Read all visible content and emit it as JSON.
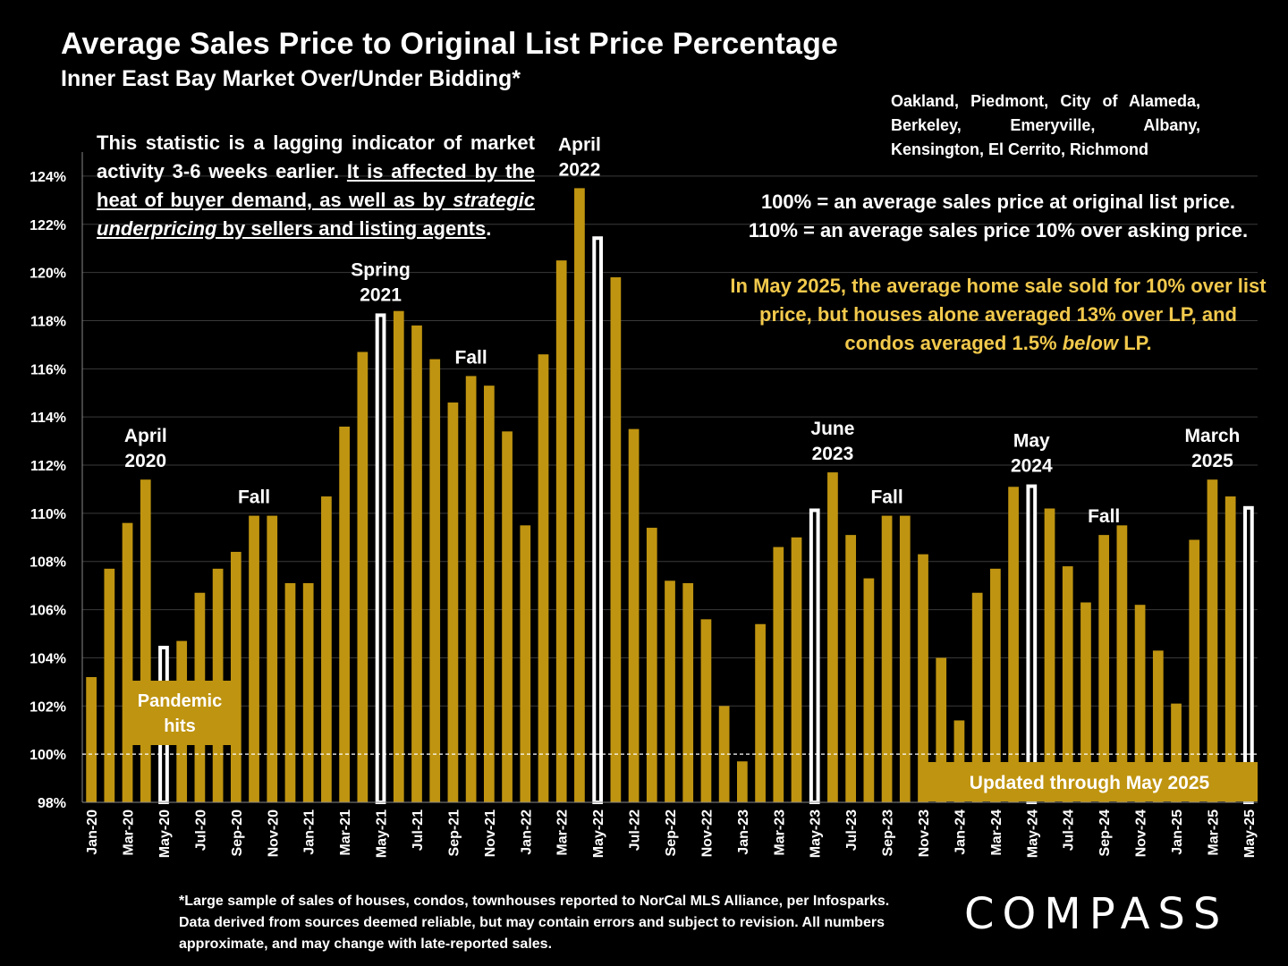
{
  "colors": {
    "bar": "#bf9410",
    "highlight_fill": "#000000",
    "highlight_stroke": "#ffffff",
    "grid": "#3a3a3a",
    "callout_box": "#bf9410",
    "may_text": "#f2c94c"
  },
  "chart_data": {
    "type": "bar",
    "title": "Average Sales Price to Original List Price Percentage",
    "subtitle": "Inner East Bay Market Over/Under Bidding*",
    "ylim": [
      98,
      125
    ],
    "yticks": [
      "98%",
      "100%",
      "102%",
      "104%",
      "106%",
      "108%",
      "110%",
      "112%",
      "114%",
      "116%",
      "118%",
      "120%",
      "122%",
      "124%"
    ],
    "ytick_values": [
      98,
      100,
      102,
      104,
      106,
      108,
      110,
      112,
      114,
      116,
      118,
      120,
      122,
      124
    ],
    "reference_line": 100,
    "grid": true,
    "categories": [
      "Jan-20",
      "Feb-20",
      "Mar-20",
      "Apr-20",
      "May-20",
      "Jun-20",
      "Jul-20",
      "Aug-20",
      "Sep-20",
      "Oct-20",
      "Nov-20",
      "Dec-20",
      "Jan-21",
      "Feb-21",
      "Mar-21",
      "Apr-21",
      "May-21",
      "Jun-21",
      "Jul-21",
      "Aug-21",
      "Sep-21",
      "Oct-21",
      "Nov-21",
      "Dec-21",
      "Jan-22",
      "Feb-22",
      "Mar-22",
      "Apr-22",
      "May-22",
      "Jun-22",
      "Jul-22",
      "Aug-22",
      "Sep-22",
      "Oct-22",
      "Nov-22",
      "Dec-22",
      "Jan-23",
      "Feb-23",
      "Mar-23",
      "Apr-23",
      "May-23",
      "Jun-23",
      "Jul-23",
      "Aug-23",
      "Sep-23",
      "Oct-23",
      "Nov-23",
      "Dec-23",
      "Jan-24",
      "Feb-24",
      "Mar-24",
      "Apr-24",
      "May-24",
      "Jun-24",
      "Jul-24",
      "Aug-24",
      "Sep-24",
      "Oct-24",
      "Nov-24",
      "Dec-24",
      "Jan-25",
      "Feb-25",
      "Mar-25",
      "Apr-25",
      "May-25"
    ],
    "xtick_labels": [
      "Jan-20",
      "Mar-20",
      "May-20",
      "Jul-20",
      "Sep-20",
      "Nov-20",
      "Jan-21",
      "Mar-21",
      "May-21",
      "Jul-21",
      "Sep-21",
      "Nov-21",
      "Jan-22",
      "Mar-22",
      "May-22",
      "Jul-22",
      "Sep-22",
      "Nov-22",
      "Jan-23",
      "Mar-23",
      "May-23",
      "Jul-23",
      "Sep-23",
      "Nov-23",
      "Jan-24",
      "Mar-24",
      "May-24",
      "Jul-24",
      "Sep-24",
      "Nov-24",
      "Jan-25",
      "Mar-25",
      "May-25"
    ],
    "values": [
      103.2,
      107.7,
      109.6,
      111.4,
      104.5,
      104.7,
      106.7,
      107.7,
      108.4,
      109.9,
      109.9,
      107.1,
      107.1,
      110.7,
      113.6,
      116.7,
      118.3,
      118.4,
      117.8,
      116.4,
      114.6,
      115.7,
      115.3,
      113.4,
      109.5,
      116.6,
      120.5,
      123.5,
      121.5,
      119.8,
      113.5,
      109.4,
      107.2,
      107.1,
      105.6,
      102.0,
      99.7,
      105.4,
      108.6,
      109.0,
      110.2,
      111.7,
      109.1,
      107.3,
      109.9,
      109.9,
      108.3,
      104.0,
      101.4,
      106.7,
      107.7,
      111.1,
      111.2,
      110.2,
      107.8,
      106.3,
      109.1,
      109.5,
      106.2,
      104.3,
      102.1,
      108.9,
      111.4,
      110.7,
      110.3
    ],
    "highlighted": [
      "May-20",
      "May-21",
      "May-22",
      "May-23",
      "May-24",
      "May-25"
    ]
  },
  "annotations": [
    {
      "id": "april-2020",
      "lines": [
        "April",
        "2020"
      ],
      "at": "Apr-20"
    },
    {
      "id": "fall-2020",
      "lines": [
        "Fall"
      ],
      "at": "Oct-20"
    },
    {
      "id": "spring-2021",
      "lines": [
        "Spring",
        "2021"
      ],
      "at": "May-21"
    },
    {
      "id": "fall-2021",
      "lines": [
        "Fall"
      ],
      "at": "Oct-21"
    },
    {
      "id": "april-2022",
      "lines": [
        "April",
        "2022"
      ],
      "at": "Apr-22"
    },
    {
      "id": "june-2023",
      "lines": [
        "June",
        "2023"
      ],
      "at": "Jun-23"
    },
    {
      "id": "fall-2023",
      "lines": [
        "Fall"
      ],
      "at": "Sep-23"
    },
    {
      "id": "may-2024",
      "lines": [
        "May",
        "2024"
      ],
      "at": "May-24"
    },
    {
      "id": "fall-2024",
      "lines": [
        "Fall"
      ],
      "at": "Sep-24"
    },
    {
      "id": "march-2025",
      "lines": [
        "March",
        "2025"
      ],
      "at": "Mar-25"
    }
  ],
  "pandemic_callout": [
    "Pandemic",
    "hits"
  ],
  "updated_label": "Updated through May 2025",
  "cities": "Oakland, Piedmont, City of Alameda, Berkeley, Emeryville, Albany, Kensington, El Cerrito, Richmond",
  "note": {
    "part1": "This statistic is a lagging indicator of market activity 3-6 weeks earlier. ",
    "part2": "It is affected by the heat of buyer demand, as well as by ",
    "part3": "strategic underpricing",
    "part4": " by sellers and listing agents",
    "part5": "."
  },
  "definitions": [
    "100% = an average sales price at original list price.",
    "110% = an average sales price 10% over asking price."
  ],
  "may_note": {
    "part1": "In May 2025, the average home sale sold for 10% over list price, but houses alone averaged 13% over LP, and condos averaged 1.5% ",
    "part2": "below",
    "part3": " LP."
  },
  "footnote": "*Large sample of sales of houses, condos, townhouses reported to NorCal MLS Alliance, per Infosparks. Data derived from sources deemed reliable, but may contain errors and subject to revision. All numbers approximate, and may change with late-reported sales.",
  "logo": "COMPASS"
}
